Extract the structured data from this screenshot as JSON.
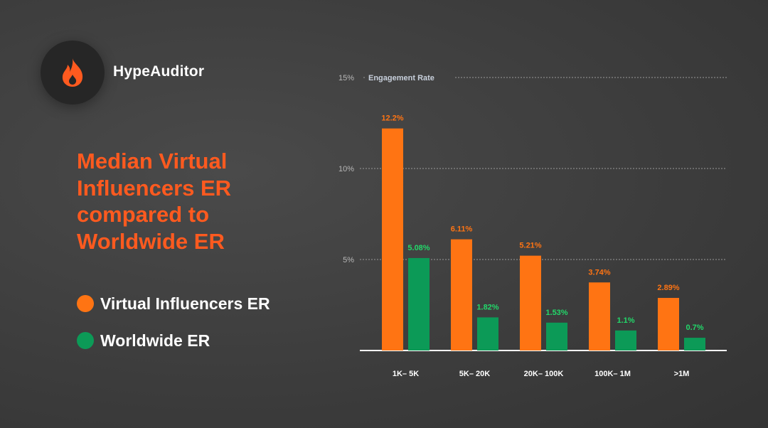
{
  "brand": {
    "name": "HypeAuditor",
    "logo_icon": "flame-icon"
  },
  "headline": [
    "Median Virtual",
    "Influencers ER",
    "compared to",
    "Worldwide ER"
  ],
  "colors": {
    "virtual": "#ff7413",
    "worldwide": "#0c9a57",
    "headline": "#ff5a1f",
    "virtual_label": "#ff7413",
    "worldwide_label": "#22d86a"
  },
  "legend": [
    {
      "label": "Virtual Influencers ER",
      "color": "#ff7413"
    },
    {
      "label": "Worldwide ER",
      "color": "#0c9a57"
    }
  ],
  "chart_data": {
    "type": "bar",
    "title": "Engagement Rate",
    "categories": [
      "1K– 5K",
      "5K– 20K",
      "20K– 100K",
      "100K– 1M",
      ">1M"
    ],
    "series": [
      {
        "name": "Virtual Influencers ER",
        "values": [
          12.2,
          6.11,
          5.21,
          3.74,
          2.89
        ],
        "labels": [
          "12.2%",
          "6.11%",
          "5.21%",
          "3.74%",
          "2.89%"
        ]
      },
      {
        "name": "Worldwide ER",
        "values": [
          5.08,
          1.82,
          1.53,
          1.1,
          0.7
        ],
        "labels": [
          "5.08%",
          "1.82%",
          "1.53%",
          "1.1%",
          "0.7%"
        ]
      }
    ],
    "y_ticks": [
      "5%",
      "10%",
      "15%"
    ],
    "ylim": [
      0,
      15
    ],
    "grid": true
  }
}
